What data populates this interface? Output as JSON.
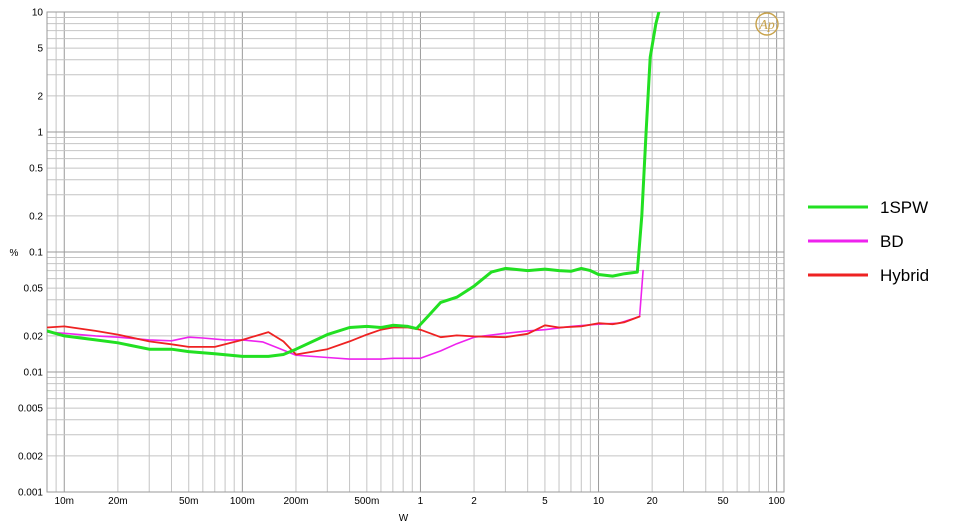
{
  "chart_data": {
    "type": "line",
    "xlabel": "W",
    "ylabel": "%",
    "x_scale": "log",
    "y_scale": "log",
    "xlim": [
      0.008,
      110
    ],
    "ylim": [
      0.001,
      10
    ],
    "grid": true,
    "legend_position": "right",
    "logo_text": "Ap",
    "x_ticks": [
      {
        "value": 0.01,
        "label": "10m"
      },
      {
        "value": 0.02,
        "label": "20m"
      },
      {
        "value": 0.05,
        "label": "50m"
      },
      {
        "value": 0.1,
        "label": "100m"
      },
      {
        "value": 0.2,
        "label": "200m"
      },
      {
        "value": 0.5,
        "label": "500m"
      },
      {
        "value": 1,
        "label": "1"
      },
      {
        "value": 2,
        "label": "2"
      },
      {
        "value": 5,
        "label": "5"
      },
      {
        "value": 10,
        "label": "10"
      },
      {
        "value": 20,
        "label": "20"
      },
      {
        "value": 50,
        "label": "50"
      },
      {
        "value": 100,
        "label": "100"
      }
    ],
    "y_ticks": [
      {
        "value": 0.001,
        "label": "0.001"
      },
      {
        "value": 0.002,
        "label": "0.002"
      },
      {
        "value": 0.005,
        "label": "0.005"
      },
      {
        "value": 0.01,
        "label": "0.01"
      },
      {
        "value": 0.02,
        "label": "0.02"
      },
      {
        "value": 0.05,
        "label": "0.05"
      },
      {
        "value": 0.1,
        "label": "0.1"
      },
      {
        "value": 0.2,
        "label": "0.2"
      },
      {
        "value": 0.5,
        "label": "0.5"
      },
      {
        "value": 1,
        "label": "1"
      },
      {
        "value": 2,
        "label": "2"
      },
      {
        "value": 5,
        "label": "5"
      },
      {
        "value": 10,
        "label": "10"
      }
    ],
    "series": [
      {
        "name": "1SPW",
        "color": "#22e022",
        "points": [
          [
            0.008,
            0.022
          ],
          [
            0.01,
            0.02
          ],
          [
            0.015,
            0.0185
          ],
          [
            0.02,
            0.0175
          ],
          [
            0.03,
            0.0155
          ],
          [
            0.04,
            0.0155
          ],
          [
            0.05,
            0.0148
          ],
          [
            0.07,
            0.0142
          ],
          [
            0.1,
            0.0135
          ],
          [
            0.14,
            0.0135
          ],
          [
            0.17,
            0.014
          ],
          [
            0.2,
            0.0155
          ],
          [
            0.3,
            0.0205
          ],
          [
            0.4,
            0.0235
          ],
          [
            0.5,
            0.024
          ],
          [
            0.6,
            0.0235
          ],
          [
            0.7,
            0.0245
          ],
          [
            0.85,
            0.024
          ],
          [
            0.95,
            0.023
          ],
          [
            1.1,
            0.029
          ],
          [
            1.3,
            0.038
          ],
          [
            1.6,
            0.042
          ],
          [
            2,
            0.052
          ],
          [
            2.5,
            0.068
          ],
          [
            3,
            0.073
          ],
          [
            4,
            0.07
          ],
          [
            5,
            0.072
          ],
          [
            6,
            0.07
          ],
          [
            7,
            0.069
          ],
          [
            8,
            0.073
          ],
          [
            9,
            0.07
          ],
          [
            10,
            0.065
          ],
          [
            12,
            0.063
          ],
          [
            14,
            0.066
          ],
          [
            16.5,
            0.068
          ],
          [
            17.5,
            0.2
          ],
          [
            18.5,
            1
          ],
          [
            19.5,
            4.2
          ],
          [
            21,
            8
          ],
          [
            22.5,
            12
          ]
        ]
      },
      {
        "name": "BD",
        "color": "#ee22ee",
        "points": [
          [
            0.008,
            0.0215
          ],
          [
            0.01,
            0.021
          ],
          [
            0.015,
            0.02
          ],
          [
            0.02,
            0.0195
          ],
          [
            0.03,
            0.0185
          ],
          [
            0.04,
            0.0182
          ],
          [
            0.05,
            0.0195
          ],
          [
            0.06,
            0.0192
          ],
          [
            0.08,
            0.0185
          ],
          [
            0.1,
            0.0185
          ],
          [
            0.13,
            0.0178
          ],
          [
            0.16,
            0.0158
          ],
          [
            0.2,
            0.0138
          ],
          [
            0.3,
            0.0132
          ],
          [
            0.4,
            0.0128
          ],
          [
            0.5,
            0.0128
          ],
          [
            0.6,
            0.0128
          ],
          [
            0.7,
            0.013
          ],
          [
            1,
            0.013
          ],
          [
            1.3,
            0.015
          ],
          [
            1.6,
            0.0172
          ],
          [
            2,
            0.0195
          ],
          [
            3,
            0.021
          ],
          [
            4,
            0.022
          ],
          [
            5,
            0.0225
          ],
          [
            7,
            0.024
          ],
          [
            10,
            0.025
          ],
          [
            13,
            0.0255
          ],
          [
            17,
            0.029
          ],
          [
            17.8,
            0.07
          ]
        ]
      },
      {
        "name": "Hybrid",
        "color": "#ee2222",
        "points": [
          [
            0.008,
            0.0235
          ],
          [
            0.01,
            0.024
          ],
          [
            0.015,
            0.022
          ],
          [
            0.02,
            0.0205
          ],
          [
            0.03,
            0.018
          ],
          [
            0.04,
            0.017
          ],
          [
            0.05,
            0.0162
          ],
          [
            0.07,
            0.0162
          ],
          [
            0.1,
            0.0185
          ],
          [
            0.14,
            0.0215
          ],
          [
            0.17,
            0.018
          ],
          [
            0.2,
            0.014
          ],
          [
            0.3,
            0.0155
          ],
          [
            0.4,
            0.018
          ],
          [
            0.5,
            0.0205
          ],
          [
            0.6,
            0.0225
          ],
          [
            0.7,
            0.0235
          ],
          [
            0.85,
            0.0235
          ],
          [
            1,
            0.0225
          ],
          [
            1.3,
            0.0195
          ],
          [
            1.6,
            0.0202
          ],
          [
            2,
            0.0198
          ],
          [
            3,
            0.0195
          ],
          [
            4,
            0.0208
          ],
          [
            5,
            0.0245
          ],
          [
            6,
            0.0235
          ],
          [
            8,
            0.024
          ],
          [
            10,
            0.0255
          ],
          [
            12,
            0.025
          ],
          [
            14,
            0.026
          ],
          [
            17,
            0.029
          ]
        ]
      }
    ]
  }
}
